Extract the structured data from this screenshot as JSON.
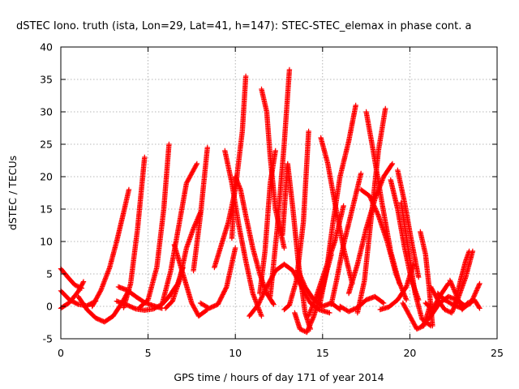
{
  "chart_data": {
    "type": "scatter",
    "title": "dSTEC Iono. truth (ista, Lon=29, Lat=41, h=147): STEC-STEC_elemax in phase cont. a",
    "xlabel": "GPS time / hours of day 171 of year 2014",
    "ylabel": "dSTEC  / TECUs",
    "xlim": [
      0,
      25
    ],
    "ylim": [
      -5,
      40
    ],
    "xticks": [
      0,
      5,
      10,
      15,
      20,
      25
    ],
    "yticks": [
      -5,
      0,
      5,
      10,
      15,
      20,
      25,
      30,
      35,
      40
    ],
    "grid": true,
    "marker": "+",
    "color": "#ff0000",
    "series": [
      {
        "x": [
          0.0,
          0.4,
          0.8,
          1.2
        ],
        "y": [
          5.8,
          4.5,
          3.3,
          2.8
        ]
      },
      {
        "x": [
          0.0,
          0.5,
          1.0,
          1.5,
          2.0
        ],
        "y": [
          2.4,
          1.0,
          0.3,
          0.1,
          0.8
        ]
      },
      {
        "x": [
          0.0,
          0.5,
          1.0,
          1.3
        ],
        "y": [
          -0.3,
          0.6,
          2.3,
          3.8
        ]
      },
      {
        "x": [
          1.0,
          1.5,
          2.0,
          2.5,
          3.0,
          3.5,
          3.9
        ],
        "y": [
          1.5,
          -0.5,
          -1.8,
          -2.4,
          -1.5,
          0.5,
          2.5
        ]
      },
      {
        "x": [
          1.8,
          2.3,
          2.8,
          3.2,
          3.6,
          3.9
        ],
        "y": [
          0.0,
          2.5,
          6.0,
          10.0,
          14.5,
          18.0
        ]
      },
      {
        "x": [
          3.3,
          3.8,
          4.3,
          4.8,
          5.3,
          5.8
        ],
        "y": [
          3.0,
          2.5,
          1.5,
          0.6,
          0.1,
          -0.3
        ]
      },
      {
        "x": [
          3.2,
          3.8,
          4.3,
          4.8,
          5.3,
          5.8,
          6.2,
          6.7,
          7.0
        ],
        "y": [
          0.8,
          0.2,
          -0.4,
          -0.6,
          -0.4,
          0.3,
          1.5,
          3.5,
          6.0
        ]
      },
      {
        "x": [
          3.6,
          4.0,
          4.4,
          4.8
        ],
        "y": [
          -0.2,
          3.5,
          12.0,
          23.0
        ]
      },
      {
        "x": [
          4.5,
          5.0,
          5.5,
          5.9,
          6.2
        ],
        "y": [
          -0.2,
          1.0,
          6.0,
          15.0,
          25.0
        ]
      },
      {
        "x": [
          5.8,
          6.3,
          6.8,
          7.2,
          7.8
        ],
        "y": [
          0.3,
          5.5,
          13.0,
          19.0,
          22.0
        ]
      },
      {
        "x": [
          6.0,
          6.4,
          6.8,
          7.2,
          7.6,
          8.0
        ],
        "y": [
          -0.3,
          0.8,
          4.0,
          9.0,
          12.0,
          14.5
        ]
      },
      {
        "x": [
          6.5,
          7.0,
          7.5,
          7.9,
          8.4
        ],
        "y": [
          9.5,
          5.0,
          0.5,
          -1.5,
          -0.5
        ]
      },
      {
        "x": [
          7.6,
          8.0,
          8.4
        ],
        "y": [
          5.5,
          14.0,
          24.5
        ]
      },
      {
        "x": [
          8.0,
          8.5,
          9.0,
          9.5,
          10.0
        ],
        "y": [
          0.5,
          -0.3,
          0.3,
          3.0,
          9.0
        ]
      },
      {
        "x": [
          8.8,
          9.2,
          9.6,
          10.0,
          10.4,
          10.6
        ],
        "y": [
          6.0,
          9.5,
          13.0,
          18.0,
          27.0,
          35.5
        ]
      },
      {
        "x": [
          9.4,
          9.8,
          10.2,
          10.6,
          11.0,
          11.5
        ],
        "y": [
          24.0,
          19.0,
          12.5,
          7.0,
          2.0,
          -1.5
        ]
      },
      {
        "x": [
          9.8,
          10.0,
          10.3,
          10.6,
          11.0,
          11.4,
          11.8,
          12.2
        ],
        "y": [
          10.5,
          20.0,
          18.0,
          14.0,
          9.0,
          5.0,
          2.0,
          0.3
        ]
      },
      {
        "x": [
          10.8,
          11.3,
          11.8,
          12.3,
          12.8,
          13.3,
          13.8,
          14.3,
          14.8,
          15.4
        ],
        "y": [
          -1.5,
          0.2,
          3.0,
          5.5,
          6.5,
          5.5,
          3.0,
          0.5,
          -0.5,
          -1.0
        ]
      },
      {
        "x": [
          11.4,
          11.7,
          12.0,
          12.3
        ],
        "y": [
          2.0,
          8.5,
          19.0,
          24.0
        ]
      },
      {
        "x": [
          11.5,
          11.8,
          12.0,
          12.3,
          12.8
        ],
        "y": [
          33.5,
          30.0,
          23.0,
          15.0,
          9.0
        ]
      },
      {
        "x": [
          12.0,
          12.4,
          12.8,
          13.1
        ],
        "y": [
          1.5,
          12.0,
          25.0,
          36.5
        ]
      },
      {
        "x": [
          12.7,
          13.0,
          13.3,
          13.6,
          14.0,
          14.3
        ],
        "y": [
          11.0,
          22.0,
          15.0,
          7.0,
          -1.0,
          -3.5
        ]
      },
      {
        "x": [
          12.8,
          13.1,
          13.5,
          13.9,
          14.2
        ],
        "y": [
          -0.5,
          0.2,
          4.0,
          13.0,
          27.0
        ]
      },
      {
        "x": [
          13.4,
          13.7,
          14.1,
          14.5,
          15.0,
          15.5
        ],
        "y": [
          -1.0,
          -3.5,
          -4.0,
          -1.5,
          3.0,
          8.0
        ]
      },
      {
        "x": [
          13.6,
          14.0,
          14.5,
          15.0,
          15.5,
          16.0
        ],
        "y": [
          5.5,
          3.0,
          1.0,
          0.0,
          0.5,
          -0.5
        ]
      },
      {
        "x": [
          14.2,
          14.7,
          15.2,
          15.7,
          16.2
        ],
        "y": [
          -1.5,
          2.0,
          6.0,
          10.0,
          15.5
        ]
      },
      {
        "x": [
          14.9,
          15.3,
          15.7,
          16.2,
          16.7
        ],
        "y": [
          26.0,
          22.0,
          16.0,
          9.0,
          3.5
        ]
      },
      {
        "x": [
          14.8,
          15.2,
          15.6,
          16.0,
          16.5,
          16.9
        ],
        "y": [
          -0.2,
          5.0,
          13.0,
          20.0,
          25.5,
          31.0
        ]
      },
      {
        "x": [
          15.5,
          15.8,
          16.2,
          16.7,
          17.2
        ],
        "y": [
          0.3,
          4.0,
          9.5,
          15.0,
          20.5
        ]
      },
      {
        "x": [
          16.0,
          16.5,
          17.0,
          17.5,
          18.0,
          18.5
        ],
        "y": [
          0.0,
          -0.8,
          -0.2,
          1.0,
          1.5,
          0.5
        ]
      },
      {
        "x": [
          16.5,
          17.0,
          17.5,
          18.0,
          18.5,
          19.0
        ],
        "y": [
          2.0,
          6.5,
          12.0,
          16.5,
          20.0,
          22.0
        ]
      },
      {
        "x": [
          17.0,
          17.4,
          17.8,
          18.2,
          18.6
        ],
        "y": [
          -1.0,
          4.0,
          14.0,
          24.0,
          30.5
        ]
      },
      {
        "x": [
          17.5,
          17.9,
          18.4,
          18.9,
          19.4
        ],
        "y": [
          30.0,
          24.0,
          16.0,
          8.5,
          3.5
        ]
      },
      {
        "x": [
          17.2,
          17.7,
          18.2,
          18.7,
          19.2,
          19.8
        ],
        "y": [
          18.0,
          17.0,
          14.0,
          10.0,
          5.0,
          1.0
        ]
      },
      {
        "x": [
          18.3,
          18.8,
          19.3,
          19.8,
          20.2
        ],
        "y": [
          -0.5,
          -0.1,
          1.0,
          3.0,
          6.5
        ]
      },
      {
        "x": [
          18.9,
          19.3,
          19.7,
          20.1,
          20.5
        ],
        "y": [
          19.5,
          15.0,
          9.0,
          4.0,
          1.0
        ]
      },
      {
        "x": [
          19.3,
          19.7,
          20.1,
          20.5
        ],
        "y": [
          21.0,
          16.0,
          10.0,
          4.5
        ]
      },
      {
        "x": [
          19.5,
          19.9,
          20.3,
          20.7,
          21.2
        ],
        "y": [
          16.0,
          9.0,
          2.0,
          -2.0,
          -3.0
        ]
      },
      {
        "x": [
          19.6,
          20.0,
          20.4,
          20.8,
          21.2
        ],
        "y": [
          0.5,
          -1.5,
          -3.5,
          -3.0,
          0.5
        ]
      },
      {
        "x": [
          20.6,
          20.9,
          21.1,
          21.3
        ],
        "y": [
          11.5,
          8.0,
          3.0,
          -3.0
        ]
      },
      {
        "x": [
          20.7,
          21.2,
          21.7,
          22.2,
          22.7,
          23.2
        ],
        "y": [
          -3.0,
          -1.5,
          0.5,
          1.5,
          1.0,
          0.0
        ]
      },
      {
        "x": [
          20.9,
          21.3,
          21.7,
          22.2
        ],
        "y": [
          0.5,
          -0.5,
          1.5,
          3.5
        ]
      },
      {
        "x": [
          21.2,
          21.6,
          22.0,
          22.4,
          22.8,
          23.2,
          23.6
        ],
        "y": [
          3.0,
          1.0,
          -0.5,
          -1.0,
          1.5,
          4.5,
          8.5
        ]
      },
      {
        "x": [
          21.6,
          22.0,
          22.5,
          23.0,
          23.5,
          24.0
        ],
        "y": [
          2.0,
          1.0,
          0.2,
          -0.3,
          0.5,
          3.5
        ]
      },
      {
        "x": [
          22.3,
          22.7,
          23.0,
          23.3,
          23.7,
          24.0
        ],
        "y": [
          4.0,
          1.5,
          -0.5,
          0.5,
          1.0,
          -0.3
        ]
      },
      {
        "x": [
          22.6,
          22.9,
          23.2,
          23.4
        ],
        "y": [
          0.5,
          4.0,
          7.0,
          8.5
        ]
      }
    ]
  }
}
